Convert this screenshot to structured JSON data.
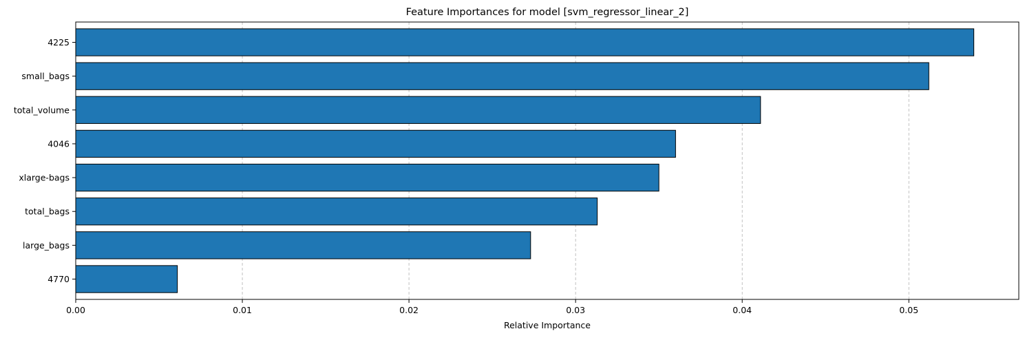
{
  "chart_data": {
    "type": "bar",
    "orientation": "horizontal",
    "title": "Feature Importances for model [svm_regressor_linear_2]",
    "xlabel": "Relative Importance",
    "ylabel": "",
    "categories": [
      "4225",
      "small_bags",
      "total_volume",
      "4046",
      "xlarge-bags",
      "total_bags",
      "large_bags",
      "4770"
    ],
    "values": [
      0.0539,
      0.0512,
      0.0411,
      0.036,
      0.035,
      0.0313,
      0.0273,
      0.0061
    ],
    "xlim": [
      0,
      0.0566
    ],
    "xticks": [
      0.0,
      0.01,
      0.02,
      0.03,
      0.04,
      0.05
    ],
    "xtick_labels": [
      "0.00",
      "0.01",
      "0.02",
      "0.03",
      "0.04",
      "0.05"
    ],
    "grid": "x-axis dashed",
    "legend": "none",
    "colors": {
      "bar_fill": "#1f77b4",
      "bar_edge": "#000000",
      "grid": "#b0b0b0",
      "axis": "#000000",
      "background": "#ffffff"
    }
  }
}
